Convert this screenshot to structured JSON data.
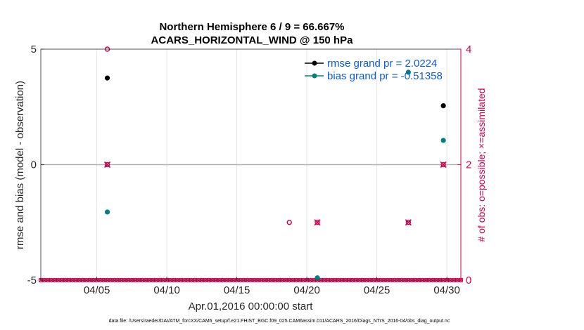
{
  "chart_data": {
    "type": "scatter",
    "title": "Northern Hemisphere 6 / 9 = 66.667%",
    "subtitle": "ACARS_HORIZONTAL_WIND @ 150 hPa",
    "xlabel": "Apr.01,2016 00:00:00 start",
    "ylabel": "rmse and bias (model - observation)",
    "ylabel_right": "# of obs: o=possible; ×=assimilated",
    "xlim": [
      1.0,
      31.0
    ],
    "ylim": [
      -5,
      5
    ],
    "ylim_right": [
      0,
      4
    ],
    "x_ticks": [
      5,
      10,
      15,
      20,
      25,
      30
    ],
    "x_tick_labels": [
      "04/05",
      "04/10",
      "04/15",
      "04/20",
      "04/25",
      "04/30"
    ],
    "y_ticks": [
      -5,
      0,
      5
    ],
    "y_tick_labels": [
      "-5",
      "0",
      "5"
    ],
    "y_right_ticks": [
      0,
      2,
      4
    ],
    "y_right_tick_labels": [
      "0",
      "2",
      "4"
    ],
    "grid": true,
    "zero_line": 0,
    "legend_position": "top-right",
    "series": [
      {
        "name": "rmse grand pr = 2.0224",
        "color": "#000000",
        "marker": "dot",
        "points": [
          [
            5.75,
            3.75
          ],
          [
            29.75,
            2.55
          ]
        ]
      },
      {
        "name": "bias grand pr = -0.51358",
        "color": "#008080",
        "marker": "dot",
        "points": [
          [
            5.75,
            -2.05
          ],
          [
            20.75,
            -4.9
          ],
          [
            27.25,
            4.0
          ],
          [
            29.75,
            1.05
          ]
        ]
      }
    ],
    "obs_possible": {
      "color": "#d6004f",
      "marker": "circle",
      "points": [
        [
          5.75,
          4
        ],
        [
          5.75,
          2
        ],
        [
          18.75,
          1
        ],
        [
          20.75,
          1
        ],
        [
          27.25,
          1
        ],
        [
          29.75,
          2
        ]
      ]
    },
    "obs_assimilated": {
      "color": "#d6004f",
      "marker": "x",
      "points": [
        [
          5.75,
          2
        ],
        [
          20.75,
          1
        ],
        [
          27.25,
          1
        ],
        [
          29.75,
          2
        ]
      ]
    },
    "obs_zero_days_start": 1.0,
    "obs_zero_days_end": 31.0,
    "obs_zero_step": 0.25
  },
  "footer": "data file: /Users/raeder/DAI/ATM_forcXX/CAM6_setup/f.e21.FHIST_BGC.f09_025.CAM6assim.011/ACARS_2016/Diags_NTrS_2016-04/obs_diag_output.nc"
}
